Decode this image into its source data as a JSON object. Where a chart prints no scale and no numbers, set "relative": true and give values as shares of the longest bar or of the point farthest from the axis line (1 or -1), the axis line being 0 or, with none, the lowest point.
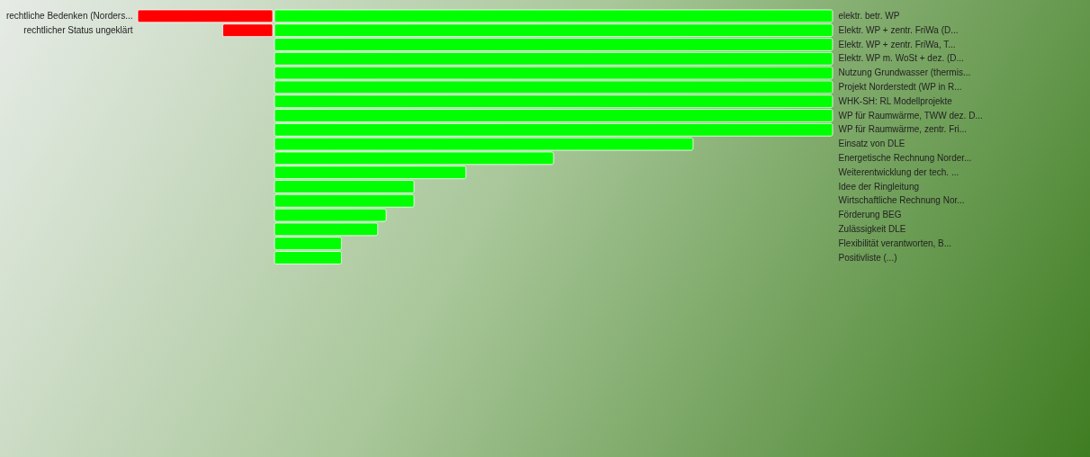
{
  "chart_data": [
    {
      "type": "bar",
      "orientation": "horizontal",
      "relative": true,
      "categories": [
        "rechtliche Bedenken (Norders...",
        "rechtlicher Status ungeklärt"
      ],
      "series": [
        {
          "color": "#ff0000",
          "values": [
            -1,
            -0.37
          ]
        }
      ]
    },
    {
      "type": "bar",
      "orientation": "horizontal",
      "relative": true,
      "categories": [
        "elektr. betr. WP",
        "Elektr. WP + zentr. FriWa (D...",
        "Elektr. WP + zentr. FriWa, T...",
        "Elektr. WP m. WoSt + dez. (D...",
        "Nutzung Grundwasser (thermis...",
        "Projekt Norderstedt (WP in R...",
        "WHK-SH: RL Modellprojekte",
        "WP für Raumwärme, TWW dez. D...",
        "WP für Raumwärme, zentr. Fri...",
        "Einsatz von DLE",
        "Energetische Rechnung Norder...",
        "Weiterentwicklung der tech. ...",
        "Idee der Ringleitung",
        "Wirtschaftliche Rechnung Nor...",
        "Förderung BEG",
        "Zulässigkeit DLE",
        "Flexibilität verantworten, B...",
        "Positivliste (...)"
      ],
      "series": [
        {
          "color": "#00ff00",
          "values": [
            1,
            1,
            1,
            1,
            1,
            1,
            1,
            1,
            1,
            0.75,
            0.5,
            0.343,
            0.25,
            0.25,
            0.2,
            0.185,
            0.12,
            0.12
          ]
        }
      ]
    }
  ]
}
